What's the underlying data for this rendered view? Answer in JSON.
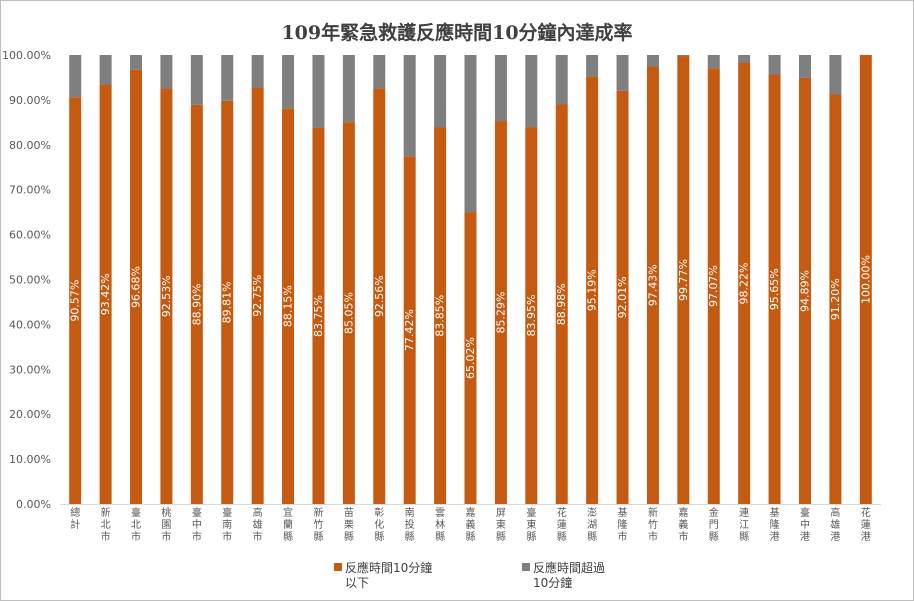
{
  "chart_data": {
    "type": "bar",
    "stacked": true,
    "title": "109年緊急救護反應時間10分鐘內達成率",
    "categories": [
      "總計",
      "新北市",
      "臺北市",
      "桃園市",
      "臺中市",
      "臺南市",
      "高雄市",
      "宜蘭縣",
      "新竹縣",
      "苗栗縣",
      "彰化縣",
      "南投縣",
      "雲林縣",
      "嘉義縣",
      "屏東縣",
      "臺東縣",
      "花蓮縣",
      "澎湖縣",
      "基隆市",
      "新竹市",
      "嘉義市",
      "金門縣",
      "連江縣",
      "基隆港",
      "臺中港",
      "高雄港",
      "花蓮港"
    ],
    "series": [
      {
        "name": "反應時間10分鐘以下",
        "color": "#c55a11",
        "values": [
          90.57,
          93.42,
          96.68,
          92.53,
          88.9,
          89.81,
          92.75,
          88.15,
          83.75,
          85.05,
          92.56,
          77.42,
          83.85,
          65.02,
          85.29,
          83.95,
          88.98,
          95.19,
          92.01,
          97.43,
          99.77,
          97.07,
          98.22,
          95.65,
          94.89,
          91.2,
          100.0
        ],
        "labels": [
          "90.57%",
          "93.42%",
          "96.68%",
          "92.53%",
          "88.90%",
          "89.81%",
          "92.75%",
          "88.15%",
          "83.75%",
          "85.05%",
          "92.56%",
          "77.42%",
          "83.85%",
          "65.02%",
          "85.29%",
          "83.95%",
          "88.98%",
          "95.19%",
          "92.01%",
          "97.43%",
          "99.77%",
          "97.07%",
          "98.22%",
          "95.65%",
          "94.89%",
          "91.20%",
          "100.00%"
        ]
      },
      {
        "name": "反應時間超過10分鐘",
        "color": "#7f7f7f",
        "values": [
          9.43,
          6.58,
          3.32,
          7.47,
          11.1,
          10.19,
          7.25,
          11.85,
          16.25,
          14.95,
          7.44,
          22.58,
          16.15,
          34.98,
          14.71,
          16.05,
          11.02,
          4.81,
          7.99,
          2.57,
          0.23,
          2.93,
          1.78,
          4.35,
          5.11,
          8.8,
          0.0
        ]
      }
    ],
    "legend_text": [
      {
        "line1": "反應時間10分鐘",
        "line2": "以下"
      },
      {
        "line1": "反應時間超過",
        "line2": "10分鐘"
      }
    ],
    "yticks": [
      "0.00%",
      "10.00%",
      "20.00%",
      "30.00%",
      "40.00%",
      "50.00%",
      "60.00%",
      "70.00%",
      "80.00%",
      "90.00%",
      "100.00%"
    ],
    "ylim": [
      0,
      100
    ],
    "legend_position": "bottom",
    "grid": false
  }
}
